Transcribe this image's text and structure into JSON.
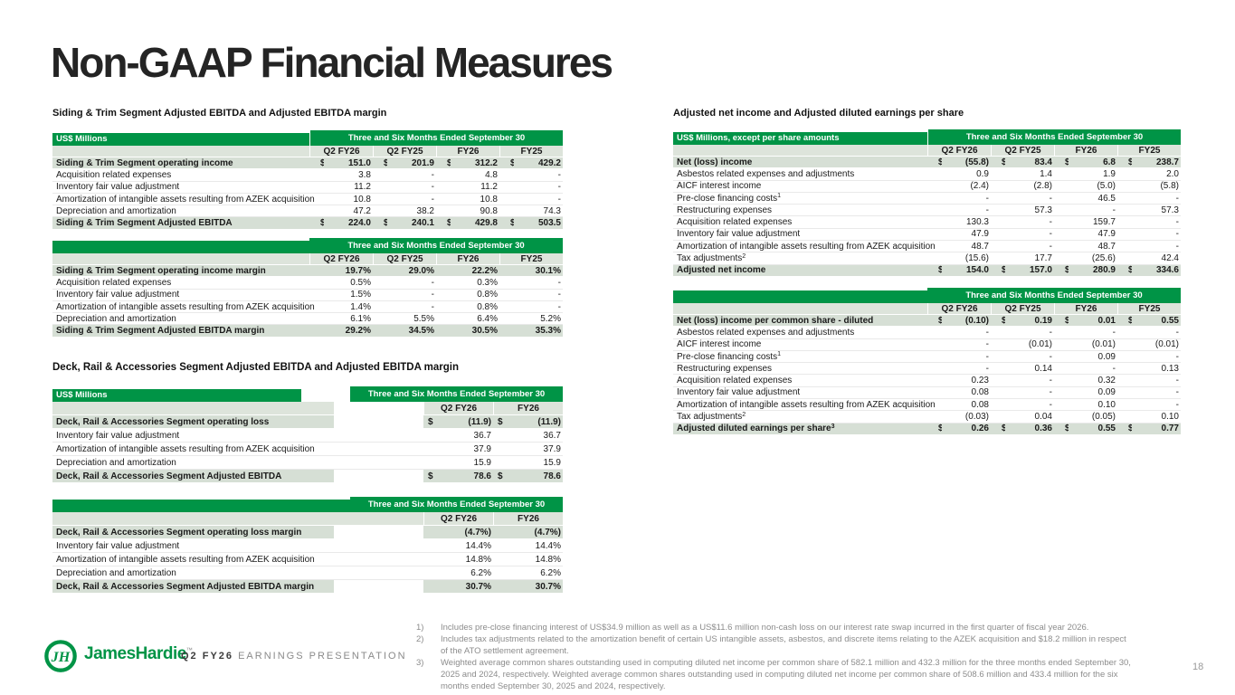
{
  "page": {
    "title": "Non-GAAP Financial Measures",
    "page_number": "18"
  },
  "colors": {
    "brand_green": "#009446",
    "bold_row_bg": "#d6dfd5",
    "subheader_bg": "#dde4db",
    "header_text": "#ffffff",
    "footnote_gray": "#8c8c8c"
  },
  "headings": {
    "siding": "Siding & Trim Segment Adjusted EBITDA and Adjusted EBITDA margin",
    "deck": "Deck, Rail & Accessories Segment Adjusted EBITDA and Adjusted EBITDA margin",
    "right": "Adjusted net income and Adjusted diluted earnings per share"
  },
  "tables": [
    {
      "name": "siding-adjusted-ebitda",
      "layout": "four",
      "side": "left",
      "corner_label": "US$ Millions",
      "span_label": "Three and Six Months Ended September 30",
      "col_headers": [
        "Q2 FY26",
        "Q2 FY25",
        "FY26",
        "FY25"
      ],
      "rows": [
        {
          "label": "Siding & Trim Segment operating income",
          "bold": true,
          "dollar": true,
          "values": [
            "151.0",
            "201.9",
            "312.2",
            "429.2"
          ]
        },
        {
          "label": "Acquisition related expenses",
          "values": [
            "3.8",
            "-",
            "4.8",
            "-"
          ]
        },
        {
          "label": "Inventory fair value adjustment",
          "values": [
            "11.2",
            "-",
            "11.2",
            "-"
          ]
        },
        {
          "label": "Amortization of intangible assets resulting from AZEK acquisition",
          "values": [
            "10.8",
            "-",
            "10.8",
            "-"
          ]
        },
        {
          "label": "Depreciation and amortization",
          "values": [
            "47.2",
            "38.2",
            "90.8",
            "74.3"
          ]
        },
        {
          "label": "Siding & Trim Segment Adjusted EBITDA",
          "bold": true,
          "dollar": true,
          "values": [
            "224.0",
            "240.1",
            "429.8",
            "503.5"
          ]
        }
      ]
    },
    {
      "name": "siding-adjusted-ebitda-margin",
      "layout": "four",
      "side": "left",
      "corner_label": "",
      "span_label": "Three and Six Months Ended September 30",
      "col_headers": [
        "Q2 FY26",
        "Q2 FY25",
        "FY26",
        "FY25"
      ],
      "rows": [
        {
          "label": "Siding & Trim Segment operating income margin",
          "bold": true,
          "values": [
            "19.7%",
            "29.0%",
            "22.2%",
            "30.1%"
          ]
        },
        {
          "label": "Acquisition related expenses",
          "values": [
            "0.5%",
            "-",
            "0.3%",
            "-"
          ]
        },
        {
          "label": "Inventory fair value adjustment",
          "values": [
            "1.5%",
            "-",
            "0.8%",
            "-"
          ]
        },
        {
          "label": "Amortization of intangible assets resulting from AZEK acquisition",
          "values": [
            "1.4%",
            "-",
            "0.8%",
            "-"
          ]
        },
        {
          "label": "Depreciation and amortization",
          "values": [
            "6.1%",
            "5.5%",
            "6.4%",
            "5.2%"
          ]
        },
        {
          "label": "Siding & Trim Segment Adjusted EBITDA margin",
          "bold": true,
          "values": [
            "29.2%",
            "34.5%",
            "30.5%",
            "35.3%"
          ]
        }
      ]
    },
    {
      "name": "deck-adjusted-ebitda",
      "layout": "deck",
      "side": "left",
      "corner_label": "US$ Millions",
      "span_label": "Three and Six Months Ended September 30",
      "green_gap": true,
      "gray_spacer": false,
      "col_headers": [
        "Q2 FY26",
        "FY26"
      ],
      "rows": [
        {
          "label": "Deck, Rail & Accessories Segment operating loss",
          "bold": true,
          "dollar": true,
          "values": [
            "(11.9)",
            "(11.9)"
          ]
        },
        {
          "label": "Inventory fair value adjustment",
          "values": [
            "36.7",
            "36.7"
          ]
        },
        {
          "label": "Amortization of intangible assets resulting from AZEK acquisition",
          "values": [
            "37.9",
            "37.9"
          ]
        },
        {
          "label": "Depreciation and amortization",
          "values": [
            "15.9",
            "15.9"
          ]
        },
        {
          "label": "Deck, Rail & Accessories Segment Adjusted EBITDA",
          "bold": true,
          "dollar": true,
          "values": [
            "78.6",
            "78.6"
          ]
        }
      ]
    },
    {
      "name": "deck-adjusted-ebitda-margin",
      "layout": "deck",
      "side": "left",
      "corner_label": "",
      "span_label": "Three and Six Months Ended September 30",
      "green_gap": false,
      "gray_spacer": true,
      "col_headers": [
        "Q2 FY26",
        "FY26"
      ],
      "rows": [
        {
          "label": "Deck, Rail & Accessories Segment operating loss margin",
          "bold": true,
          "values": [
            "(4.7%)",
            "(4.7%)"
          ]
        },
        {
          "label": "Inventory fair value adjustment",
          "values": [
            "14.4%",
            "14.4%"
          ]
        },
        {
          "label": "Amortization of intangible assets resulting from AZEK acquisition",
          "values": [
            "14.8%",
            "14.8%"
          ]
        },
        {
          "label": "Depreciation and amortization",
          "values": [
            "6.2%",
            "6.2%"
          ]
        },
        {
          "label": "Deck, Rail & Accessories Segment Adjusted EBITDA margin",
          "bold": true,
          "values": [
            "30.7%",
            "30.7%"
          ]
        }
      ]
    },
    {
      "name": "adjusted-net-income",
      "layout": "four",
      "side": "right",
      "corner_label": "US$ Millions, except per share amounts",
      "span_label": "Three and Six Months Ended September 30",
      "col_headers": [
        "Q2 FY26",
        "Q2 FY25",
        "FY26",
        "FY25"
      ],
      "rows": [
        {
          "label": "Net (loss) income",
          "bold": true,
          "dollar": true,
          "values": [
            "(55.8)",
            "83.4",
            "6.8",
            "238.7"
          ]
        },
        {
          "label": "Asbestos related expenses and adjustments",
          "values": [
            "0.9",
            "1.4",
            "1.9",
            "2.0"
          ]
        },
        {
          "label": "AICF interest income",
          "values": [
            "(2.4)",
            "(2.8)",
            "(5.0)",
            "(5.8)"
          ]
        },
        {
          "label": "Pre-close financing costs",
          "sup": "1",
          "values": [
            "-",
            "-",
            "46.5",
            "-"
          ]
        },
        {
          "label": "Restructuring expenses",
          "values": [
            "-",
            "57.3",
            "-",
            "57.3"
          ]
        },
        {
          "label": "Acquisition related expenses",
          "values": [
            "130.3",
            "-",
            "159.7",
            "-"
          ]
        },
        {
          "label": "Inventory fair value adjustment",
          "values": [
            "47.9",
            "-",
            "47.9",
            "-"
          ]
        },
        {
          "label": "Amortization of intangible assets resulting from AZEK acquisition",
          "values": [
            "48.7",
            "-",
            "48.7",
            "-"
          ]
        },
        {
          "label": "Tax adjustments",
          "sup": "2",
          "values": [
            "(15.6)",
            "17.7",
            "(25.6)",
            "42.4"
          ]
        },
        {
          "label": "Adjusted net income",
          "bold": true,
          "dollar": true,
          "values": [
            "154.0",
            "157.0",
            "280.9",
            "334.6"
          ]
        }
      ]
    },
    {
      "name": "adjusted-diluted-eps",
      "layout": "four",
      "side": "right",
      "corner_label": "",
      "span_label": "Three and Six Months Ended September 30",
      "col_headers": [
        "Q2 FY26",
        "Q2 FY25",
        "FY26",
        "FY25"
      ],
      "rows": [
        {
          "label": "Net (loss) income per common share - diluted",
          "bold": true,
          "dollar": true,
          "values": [
            "(0.10)",
            "0.19",
            "0.01",
            "0.55"
          ]
        },
        {
          "label": "Asbestos related expenses and adjustments",
          "values": [
            "-",
            "-",
            "-",
            "-"
          ]
        },
        {
          "label": "AICF interest income",
          "values": [
            "-",
            "(0.01)",
            "(0.01)",
            "(0.01)"
          ]
        },
        {
          "label": "Pre-close financing costs",
          "sup": "1",
          "values": [
            "-",
            "-",
            "0.09",
            "-"
          ]
        },
        {
          "label": "Restructuring expenses",
          "values": [
            "-",
            "0.14",
            "-",
            "0.13"
          ]
        },
        {
          "label": "Acquisition related expenses",
          "values": [
            "0.23",
            "-",
            "0.32",
            "-"
          ]
        },
        {
          "label": "Inventory fair value adjustment",
          "values": [
            "0.08",
            "-",
            "0.09",
            "-"
          ]
        },
        {
          "label": "Amortization of intangible assets resulting from AZEK acquisition",
          "values": [
            "0.08",
            "-",
            "0.10",
            "-"
          ]
        },
        {
          "label": "Tax adjustments",
          "sup": "2",
          "values": [
            "(0.03)",
            "0.04",
            "(0.05)",
            "0.10"
          ]
        },
        {
          "label": "Adjusted diluted earnings per share",
          "sup": "3",
          "bold": true,
          "dollar": true,
          "values": [
            "0.26",
            "0.36",
            "0.55",
            "0.77"
          ]
        }
      ]
    }
  ],
  "footnotes": [
    {
      "num": "1)",
      "text": "Includes pre-close financing interest of US$34.9 million as well as a US$11.6 million non-cash loss on our interest rate swap incurred in the first quarter of fiscal year 2026."
    },
    {
      "num": "2)",
      "text": "Includes tax adjustments related to the amortization benefit of certain US intangible assets, asbestos, and discrete items relating to the AZEK acquisition and $18.2 million in respect of the ATO settlement agreement."
    },
    {
      "num": "3)",
      "text": "Weighted average common shares outstanding used in computing diluted net income per common share of 582.1 million and 432.3 million for the three months ended September 30, 2025 and 2024, respectively. Weighted average common shares outstanding used in computing diluted net income per common share of 508.6 million and 433.4 million for the six months ended September 30, 2025 and 2024, respectively."
    }
  ],
  "footer": {
    "brand": "JamesHardie",
    "trademark": "™",
    "monogram": "JH",
    "quarter": "Q2 FY26",
    "presentation_label": "EARNINGS PRESENTATION"
  }
}
